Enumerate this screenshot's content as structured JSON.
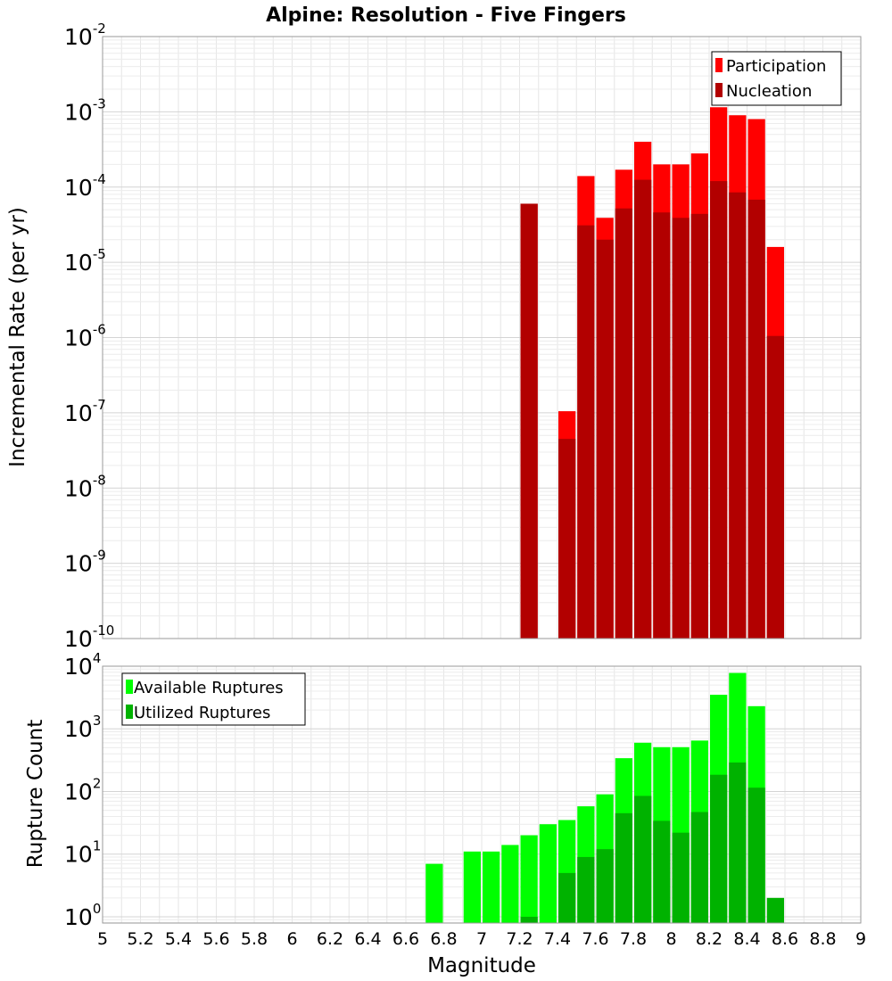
{
  "title": "Alpine: Resolution - Five Fingers",
  "chart_data": [
    {
      "type": "bar",
      "ylabel": "Incremental Rate (per yr)",
      "yscale": "log",
      "ylim_exponents": [
        -10,
        -2
      ],
      "y_tick_exponents": [
        -10,
        -9,
        -8,
        -7,
        -6,
        -5,
        -4,
        -3,
        -2
      ],
      "xlim": [
        5,
        9
      ],
      "bar_width": 0.1,
      "grid": true,
      "legend": {
        "position": "top-right",
        "entries": [
          "Participation",
          "Nucleation"
        ]
      },
      "series": [
        {
          "name": "Participation",
          "color": "#ff0000",
          "x": [
            7.25,
            7.45,
            7.55,
            7.65,
            7.75,
            7.85,
            7.95,
            8.05,
            8.15,
            8.25,
            8.35,
            8.45,
            8.55
          ],
          "values": [
            6e-05,
            1.05e-07,
            0.00014,
            3.9e-05,
            0.00017,
            0.0004,
            0.0002,
            0.0002,
            0.00028,
            0.00115,
            0.0009,
            0.0008,
            1.6e-05
          ]
        },
        {
          "name": "Nucleation",
          "color": "#b20000",
          "x": [
            7.25,
            7.45,
            7.55,
            7.65,
            7.75,
            7.85,
            7.95,
            8.05,
            8.15,
            8.25,
            8.35,
            8.45,
            8.55
          ],
          "values": [
            6e-05,
            4.5e-08,
            3.1e-05,
            2e-05,
            5.2e-05,
            0.000125,
            4.6e-05,
            3.9e-05,
            4.4e-05,
            0.00012,
            8.5e-05,
            6.8e-05,
            1.05e-06
          ]
        }
      ]
    },
    {
      "type": "bar",
      "ylabel": "Rupture Count",
      "xlabel": "Magnitude",
      "yscale": "log",
      "ylim_exponents": [
        -0.1,
        4
      ],
      "y_tick_exponents": [
        0,
        1,
        2,
        3,
        4
      ],
      "xlim": [
        5,
        9
      ],
      "bar_width": 0.1,
      "x_tick_labels": [
        "5",
        "5.2",
        "5.4",
        "5.6",
        "5.8",
        "6",
        "6.2",
        "6.4",
        "6.6",
        "6.8",
        "7",
        "7.2",
        "7.4",
        "7.6",
        "7.8",
        "8",
        "8.2",
        "8.4",
        "8.6",
        "8.8",
        "9"
      ],
      "grid": true,
      "legend": {
        "position": "top-left",
        "entries": [
          "Available Ruptures",
          "Utilized Ruptures"
        ]
      },
      "series": [
        {
          "name": "Available Ruptures",
          "color": "#00ff00",
          "x": [
            6.75,
            6.95,
            7.05,
            7.15,
            7.25,
            7.35,
            7.45,
            7.55,
            7.65,
            7.75,
            7.85,
            7.95,
            8.05,
            8.15,
            8.25,
            8.35,
            8.45
          ],
          "values": [
            7,
            11,
            11,
            14,
            20,
            30,
            35,
            58,
            90,
            340,
            600,
            510,
            510,
            650,
            3500,
            7800,
            2300
          ]
        },
        {
          "name": "Utilized Ruptures",
          "color": "#00b200",
          "x": [
            7.25,
            7.45,
            7.55,
            7.65,
            7.75,
            7.85,
            7.95,
            8.05,
            8.15,
            8.25,
            8.35,
            8.45,
            8.55
          ],
          "values": [
            1,
            5,
            9,
            12,
            45,
            85,
            34,
            22,
            47,
            185,
            290,
            115,
            2
          ]
        }
      ]
    }
  ]
}
